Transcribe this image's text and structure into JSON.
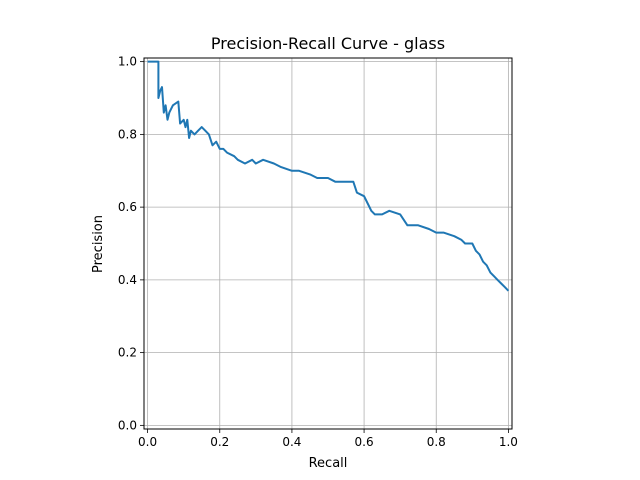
{
  "chart_data": {
    "type": "line",
    "title": "Precision-Recall Curve - glass",
    "xlabel": "Recall",
    "ylabel": "Precision",
    "xlim": [
      -0.01,
      1.01
    ],
    "ylim": [
      -0.01,
      1.01
    ],
    "xticks": [
      "0.0",
      "0.2",
      "0.4",
      "0.6",
      "0.8",
      "1.0"
    ],
    "yticks": [
      "0.0",
      "0.2",
      "0.4",
      "0.6",
      "0.8",
      "1.0"
    ],
    "grid": true,
    "line_color": "#1f77b4",
    "series": [
      {
        "x": [
          0.0,
          0.03,
          0.03,
          0.035,
          0.04,
          0.045,
          0.05,
          0.055,
          0.06,
          0.07,
          0.085,
          0.09,
          0.1,
          0.105,
          0.11,
          0.115,
          0.12,
          0.13,
          0.14,
          0.15,
          0.16,
          0.17,
          0.18,
          0.19,
          0.2,
          0.21,
          0.22,
          0.24,
          0.25,
          0.27,
          0.29,
          0.3,
          0.32,
          0.35,
          0.37,
          0.4,
          0.42,
          0.45,
          0.47,
          0.5,
          0.52,
          0.55,
          0.57,
          0.58,
          0.6,
          0.61,
          0.62,
          0.63,
          0.65,
          0.67,
          0.7,
          0.72,
          0.73,
          0.75,
          0.78,
          0.8,
          0.82,
          0.85,
          0.87,
          0.88,
          0.9,
          0.91,
          0.92,
          0.93,
          0.94,
          0.95,
          0.96,
          0.97,
          0.98,
          0.99,
          1.0
        ],
        "y": [
          1.0,
          1.0,
          0.9,
          0.92,
          0.93,
          0.86,
          0.88,
          0.84,
          0.86,
          0.88,
          0.89,
          0.83,
          0.84,
          0.82,
          0.84,
          0.79,
          0.81,
          0.8,
          0.81,
          0.82,
          0.81,
          0.8,
          0.77,
          0.78,
          0.76,
          0.76,
          0.75,
          0.74,
          0.73,
          0.72,
          0.73,
          0.72,
          0.73,
          0.72,
          0.71,
          0.7,
          0.7,
          0.69,
          0.68,
          0.68,
          0.67,
          0.67,
          0.67,
          0.64,
          0.63,
          0.61,
          0.59,
          0.58,
          0.58,
          0.59,
          0.58,
          0.55,
          0.55,
          0.55,
          0.54,
          0.53,
          0.53,
          0.52,
          0.51,
          0.5,
          0.5,
          0.48,
          0.47,
          0.45,
          0.44,
          0.42,
          0.41,
          0.4,
          0.39,
          0.38,
          0.37
        ]
      }
    ]
  }
}
